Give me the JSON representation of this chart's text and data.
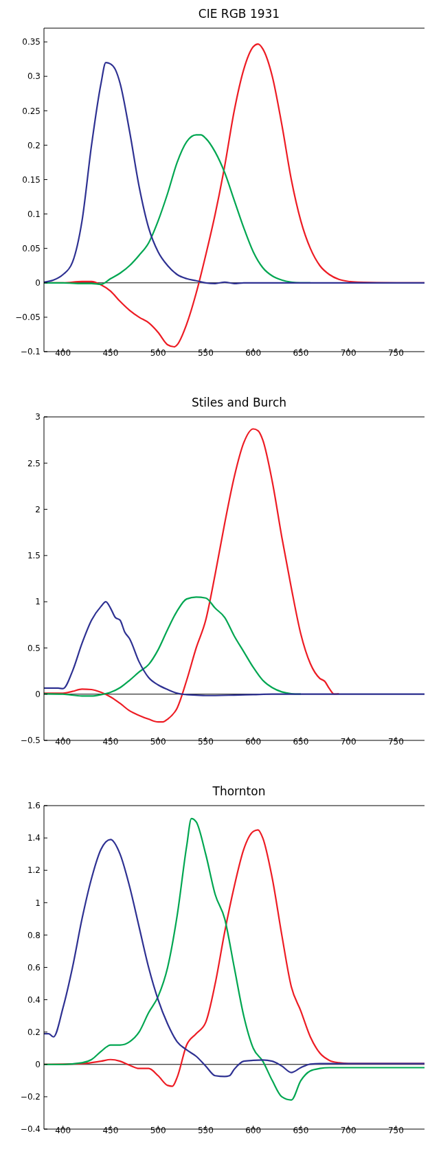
{
  "chart_data": [
    {
      "type": "line",
      "title": "CIE RGB 1931",
      "xlim": [
        380,
        780
      ],
      "xticks": [
        400,
        450,
        500,
        550,
        600,
        650,
        700,
        750
      ],
      "ylim": [
        -0.1,
        0.37
      ],
      "yticks": [
        {
          "value": -0.1,
          "label": "−0.1"
        },
        {
          "value": -0.05,
          "label": "−0.05"
        },
        0,
        0.05,
        0.1,
        0.15,
        0.2,
        0.25,
        0.3,
        0.35
      ],
      "grid": false,
      "legend": false,
      "marker": "none",
      "line_style": "solid",
      "ref_lines": [
        {
          "axis": "y",
          "value": 0,
          "color": "#000000"
        }
      ],
      "series": [
        {
          "color": "#ed1c24",
          "x": [
            380,
            400,
            420,
            430,
            440,
            450,
            460,
            470,
            480,
            490,
            500,
            510,
            517,
            520,
            530,
            540,
            550,
            560,
            570,
            580,
            590,
            600,
            605,
            610,
            620,
            630,
            640,
            650,
            660,
            670,
            680,
            690,
            700,
            710,
            750,
            780
          ],
          "values": [
            0,
            0,
            0.002,
            0.002,
            -0.003,
            -0.012,
            -0.027,
            -0.04,
            -0.05,
            -0.058,
            -0.072,
            -0.09,
            -0.093,
            -0.09,
            -0.06,
            -0.015,
            0.04,
            0.1,
            0.17,
            0.25,
            0.31,
            0.343,
            0.347,
            0.34,
            0.3,
            0.23,
            0.15,
            0.09,
            0.05,
            0.025,
            0.012,
            0.005,
            0.002,
            0.001,
            0,
            0
          ]
        },
        {
          "color": "#00a651",
          "x": [
            380,
            400,
            420,
            430,
            440,
            450,
            460,
            470,
            480,
            490,
            500,
            510,
            520,
            530,
            540,
            545,
            550,
            560,
            570,
            580,
            590,
            600,
            610,
            620,
            630,
            640,
            650,
            660
          ],
          "values": [
            0,
            0,
            -0.001,
            -0.001,
            -0.002,
            0.006,
            0.014,
            0.025,
            0.04,
            0.058,
            0.09,
            0.13,
            0.175,
            0.205,
            0.215,
            0.215,
            0.21,
            0.19,
            0.16,
            0.12,
            0.08,
            0.045,
            0.022,
            0.01,
            0.004,
            0.001,
            0,
            0
          ]
        },
        {
          "color": "#2e3192",
          "x": [
            380,
            390,
            400,
            410,
            420,
            430,
            440,
            445,
            450,
            455,
            460,
            470,
            480,
            490,
            500,
            510,
            520,
            530,
            540,
            550,
            560,
            570,
            580,
            590,
            600,
            620,
            650,
            700,
            750,
            780
          ],
          "values": [
            0.001,
            0.004,
            0.012,
            0.03,
            0.09,
            0.2,
            0.29,
            0.32,
            0.318,
            0.31,
            0.29,
            0.22,
            0.14,
            0.08,
            0.045,
            0.025,
            0.012,
            0.006,
            0.003,
            0,
            -0.001,
            0.001,
            -0.001,
            0,
            0,
            0,
            0,
            0,
            0,
            0
          ]
        }
      ]
    },
    {
      "type": "line",
      "title": "Stiles and Burch",
      "xlim": [
        380,
        780
      ],
      "xticks": [
        400,
        450,
        500,
        550,
        600,
        650,
        700,
        750
      ],
      "ylim": [
        -0.5,
        3
      ],
      "yticks": [
        {
          "value": -0.5,
          "label": "−0.5"
        },
        0,
        0.5,
        1,
        1.5,
        2,
        2.5,
        3
      ],
      "grid": false,
      "legend": false,
      "marker": "none",
      "line_style": "solid",
      "ref_lines": [
        {
          "axis": "y",
          "value": 0,
          "color": "#000000"
        }
      ],
      "series": [
        {
          "color": "#ed1c24",
          "x": [
            380,
            400,
            410,
            420,
            430,
            440,
            450,
            460,
            470,
            480,
            490,
            500,
            505,
            510,
            520,
            530,
            540,
            550,
            560,
            570,
            580,
            590,
            600,
            605,
            610,
            620,
            630,
            640,
            650,
            660,
            670,
            675,
            680,
            685,
            690
          ],
          "values": [
            0.01,
            0.01,
            0.03,
            0.055,
            0.05,
            0.02,
            -0.03,
            -0.1,
            -0.18,
            -0.23,
            -0.27,
            -0.3,
            -0.3,
            -0.27,
            -0.15,
            0.15,
            0.5,
            0.8,
            1.3,
            1.85,
            2.35,
            2.72,
            2.87,
            2.85,
            2.75,
            2.3,
            1.7,
            1.15,
            0.65,
            0.33,
            0.17,
            0.14,
            0.06,
            0,
            0.005
          ]
        },
        {
          "color": "#00a651",
          "x": [
            380,
            400,
            420,
            430,
            440,
            450,
            460,
            470,
            480,
            490,
            500,
            510,
            520,
            530,
            540,
            550,
            560,
            570,
            580,
            590,
            600,
            610,
            620,
            630,
            640,
            650
          ],
          "values": [
            0.005,
            0,
            -0.02,
            -0.02,
            -0.005,
            0.02,
            0.07,
            0.15,
            0.24,
            0.32,
            0.48,
            0.7,
            0.9,
            1.03,
            1.05,
            1.04,
            0.93,
            0.83,
            0.63,
            0.46,
            0.29,
            0.15,
            0.07,
            0.025,
            0.005,
            0
          ]
        },
        {
          "color": "#2e3192",
          "x": [
            380,
            395,
            400,
            410,
            420,
            430,
            440,
            445,
            450,
            455,
            460,
            465,
            470,
            480,
            490,
            500,
            510,
            520,
            530,
            540,
            550,
            580,
            600,
            620,
            700,
            780
          ],
          "values": [
            0.065,
            0.065,
            0.06,
            0.25,
            0.55,
            0.8,
            0.95,
            1.0,
            0.93,
            0.83,
            0.8,
            0.67,
            0.6,
            0.35,
            0.18,
            0.1,
            0.05,
            0.01,
            -0.005,
            -0.01,
            -0.015,
            -0.01,
            -0.005,
            0,
            0,
            0
          ]
        }
      ]
    },
    {
      "type": "line",
      "title": "Thornton",
      "xlim": [
        380,
        780
      ],
      "xticks": [
        400,
        450,
        500,
        550,
        600,
        650,
        700,
        750
      ],
      "ylim": [
        -0.4,
        1.6
      ],
      "yticks": [
        {
          "value": -0.4,
          "label": "−0.4"
        },
        {
          "value": -0.2,
          "label": "−0.2"
        },
        0,
        0.2,
        0.4,
        0.6,
        0.8,
        1,
        1.2,
        1.4,
        1.6
      ],
      "grid": false,
      "legend": false,
      "marker": "none",
      "line_style": "solid",
      "ref_lines": [
        {
          "axis": "y",
          "value": 0,
          "color": "#000000"
        }
      ],
      "series": [
        {
          "color": "#ed1c24",
          "x": [
            380,
            420,
            440,
            450,
            460,
            470,
            480,
            490,
            500,
            510,
            515,
            520,
            530,
            540,
            550,
            560,
            570,
            580,
            590,
            600,
            605,
            610,
            620,
            630,
            640,
            650,
            660,
            670,
            680,
            690,
            700,
            780
          ],
          "values": [
            0,
            0.005,
            0.02,
            0.03,
            0.02,
            -0.005,
            -0.025,
            -0.025,
            -0.07,
            -0.13,
            -0.135,
            -0.08,
            0.12,
            0.19,
            0.26,
            0.5,
            0.82,
            1.1,
            1.33,
            1.44,
            1.45,
            1.4,
            1.15,
            0.8,
            0.48,
            0.33,
            0.17,
            0.07,
            0.025,
            0.01,
            0.005,
            0.005
          ]
        },
        {
          "color": "#00a651",
          "x": [
            380,
            400,
            420,
            430,
            440,
            450,
            460,
            470,
            480,
            490,
            500,
            510,
            520,
            530,
            535,
            540,
            550,
            560,
            570,
            580,
            590,
            600,
            610,
            620,
            630,
            640,
            650,
            660,
            670,
            680,
            700,
            780
          ],
          "values": [
            0,
            0,
            0.01,
            0.03,
            0.08,
            0.12,
            0.12,
            0.14,
            0.2,
            0.32,
            0.42,
            0.6,
            0.92,
            1.35,
            1.52,
            1.5,
            1.3,
            1.05,
            0.9,
            0.6,
            0.3,
            0.1,
            0.02,
            -0.1,
            -0.2,
            -0.22,
            -0.1,
            -0.04,
            -0.025,
            -0.02,
            -0.02,
            -0.02
          ]
        },
        {
          "color": "#2e3192",
          "x": [
            380,
            385,
            390,
            400,
            410,
            420,
            430,
            440,
            450,
            460,
            470,
            480,
            490,
            500,
            510,
            520,
            530,
            540,
            550,
            560,
            570,
            575,
            580,
            590,
            600,
            610,
            620,
            630,
            640,
            650,
            660,
            670,
            700,
            780
          ],
          "values": [
            0.19,
            0.19,
            0.17,
            0.35,
            0.6,
            0.9,
            1.15,
            1.33,
            1.39,
            1.3,
            1.1,
            0.85,
            0.6,
            0.4,
            0.25,
            0.14,
            0.09,
            0.05,
            -0.01,
            -0.07,
            -0.075,
            -0.07,
            -0.03,
            0.02,
            0.025,
            0.027,
            0.02,
            -0.01,
            -0.05,
            -0.02,
            0.002,
            0.005,
            0.005,
            0.005
          ]
        }
      ]
    }
  ]
}
